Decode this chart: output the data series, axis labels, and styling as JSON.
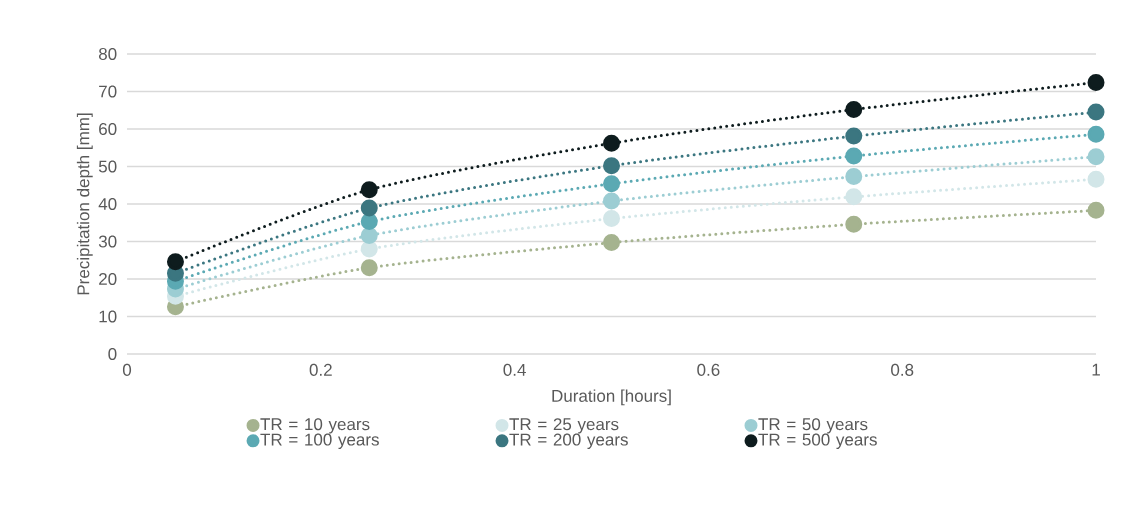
{
  "chart_data": {
    "type": "line",
    "xlabel": "Duration [hours]",
    "ylabel": "Precipitation depth [mm]",
    "x": [
      0.05,
      0.25,
      0.5,
      0.75,
      1
    ],
    "xlim": [
      0,
      1
    ],
    "xticks": [
      0,
      0.2,
      0.4,
      0.6,
      0.8,
      1
    ],
    "ylim": [
      0,
      80
    ],
    "yticks": [
      0,
      10,
      20,
      30,
      40,
      50,
      60,
      70,
      80
    ],
    "grid": "y",
    "legend": "bottom",
    "marker": "circle",
    "line_style": "dotted",
    "series": [
      {
        "name": "TR = 10 years",
        "color": "#a5b38f",
        "values": [
          12.6,
          23.0,
          29.7,
          34.6,
          38.3
        ]
      },
      {
        "name": "TR = 25 years",
        "color": "#d2e6e8",
        "values": [
          15.4,
          28.0,
          36.1,
          41.9,
          46.6
        ]
      },
      {
        "name": "TR = 50 years",
        "color": "#9ccdd3",
        "values": [
          17.3,
          31.6,
          40.8,
          47.3,
          52.6
        ]
      },
      {
        "name": "TR = 100 years",
        "color": "#5ba9b3",
        "values": [
          19.4,
          35.3,
          45.4,
          52.8,
          58.6
        ]
      },
      {
        "name": "TR = 200 years",
        "color": "#3b7680",
        "values": [
          21.5,
          38.9,
          50.2,
          58.1,
          64.5
        ]
      },
      {
        "name": "TR = 500 years",
        "color": "#0e1c1e",
        "values": [
          24.6,
          43.8,
          56.2,
          65.2,
          72.4
        ]
      }
    ]
  }
}
